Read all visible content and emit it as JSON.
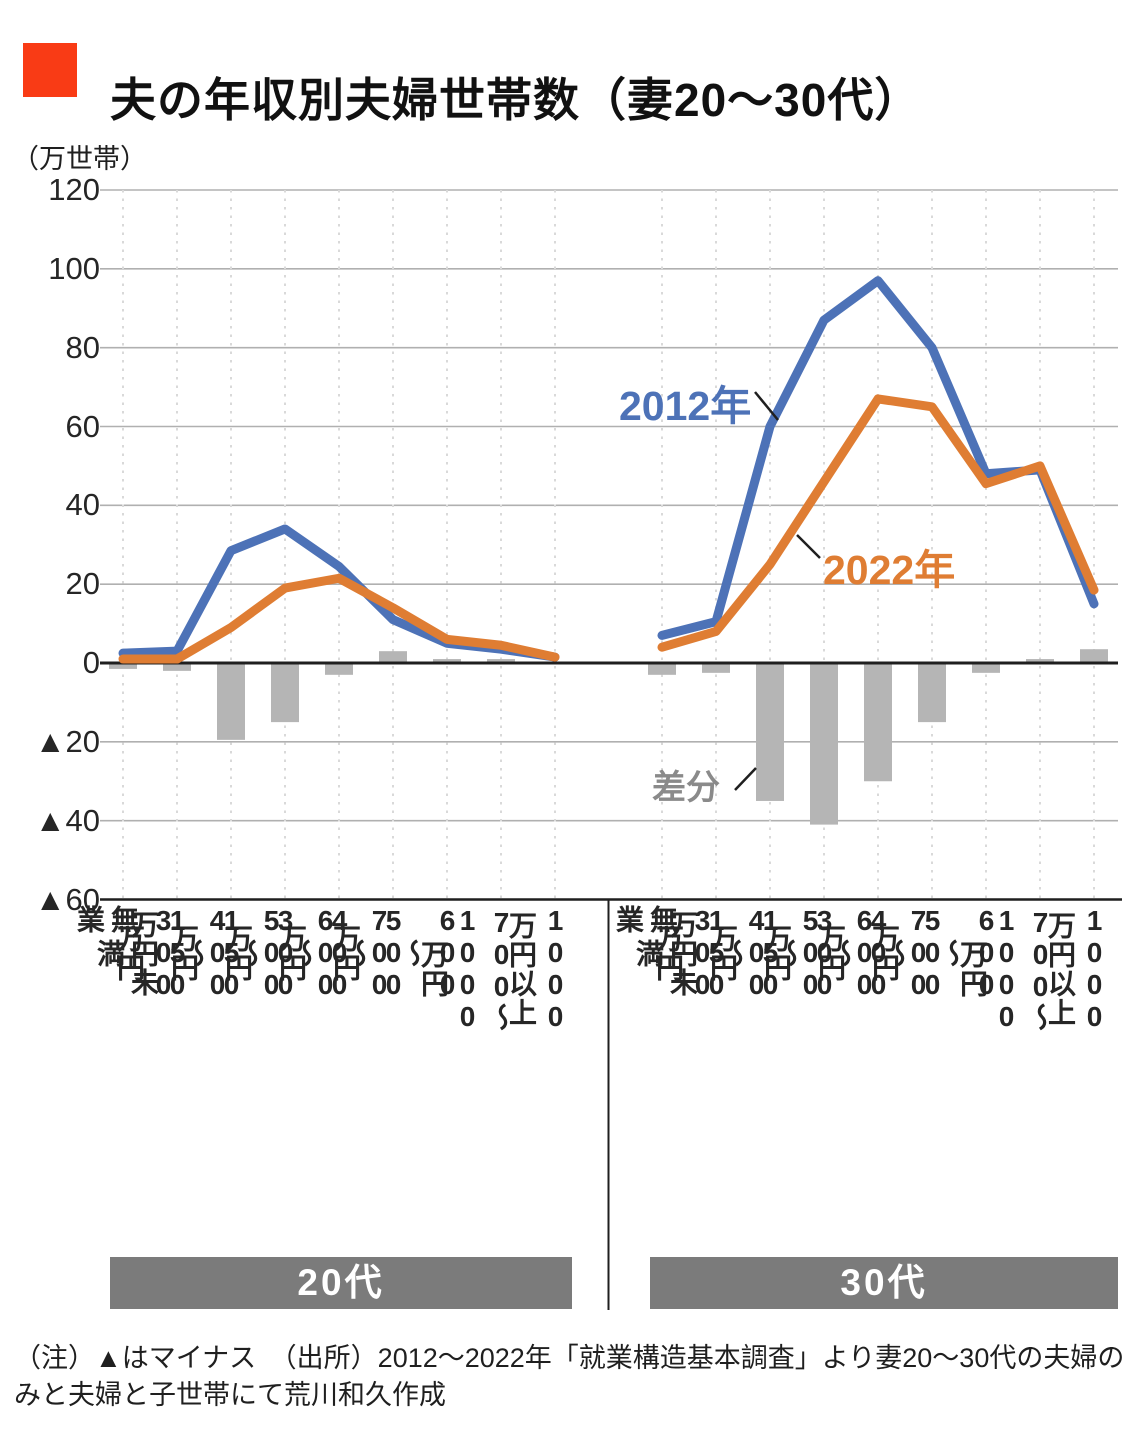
{
  "header": {
    "title": "夫の年収別夫婦世帯数（妻20～30代）"
  },
  "axis": {
    "unit": "（万世帯）",
    "y_ticks": [
      120,
      100,
      80,
      60,
      40,
      20,
      0,
      -20,
      -40,
      -60
    ],
    "negative_prefix": "▲"
  },
  "legend": {
    "s2012": "2012年",
    "s2022": "2022年",
    "diff": "差分"
  },
  "colors": {
    "accent_square": "#f93b15",
    "series_2012": "#4d72b7",
    "series_2022": "#df7d33",
    "diff_bar": "#b5b5b5",
    "band": "#7b7b7b",
    "diff_label": "#8a8a8a",
    "grid_solid": "#b0b0b0",
    "grid_dashed": "#d9d9d9",
    "axis_line": "#1f1f1f"
  },
  "footnote": "（注）▲はマイナス　（出所）2012～2022年「就業構造基本調査」より妻20～30代の夫婦の\nみと夫婦と子世帯にて荒川和久作成",
  "chart_data": {
    "type": "line+bar",
    "title": "夫の年収別夫婦世帯数（妻20～30代）",
    "ylabel": "万世帯",
    "ylim": [
      -60,
      120
    ],
    "y_tick_step": 20,
    "grid": true,
    "categories": [
      "無業",
      "150万円未満",
      "150～300万円",
      "300～400万円",
      "400～500万円",
      "500～600万円",
      "600～700万円",
      "700～1000万円",
      "1000万円以上"
    ],
    "group_labels": [
      "20代",
      "30代"
    ],
    "groups": [
      {
        "label": "20代",
        "series_2012": [
          2.5,
          3,
          28.5,
          34,
          24.5,
          11,
          5,
          3.5,
          1.5
        ],
        "series_2022": [
          1,
          1,
          9,
          19,
          21.5,
          14,
          6,
          4.5,
          1.5
        ],
        "diff": [
          -1.5,
          -2,
          -19.5,
          -15,
          -3,
          3,
          1,
          1,
          0
        ]
      },
      {
        "label": "30代",
        "series_2012": [
          7,
          10.5,
          60,
          87,
          97,
          80,
          48,
          49,
          15
        ],
        "series_2022": [
          4,
          8,
          25,
          46,
          67,
          65,
          45.5,
          50,
          18.5
        ],
        "diff": [
          -3,
          -2.5,
          -35,
          -41,
          -30,
          -15,
          -2.5,
          1,
          3.5
        ]
      }
    ],
    "legend_entries": [
      "2012年",
      "2022年",
      "差分"
    ]
  }
}
